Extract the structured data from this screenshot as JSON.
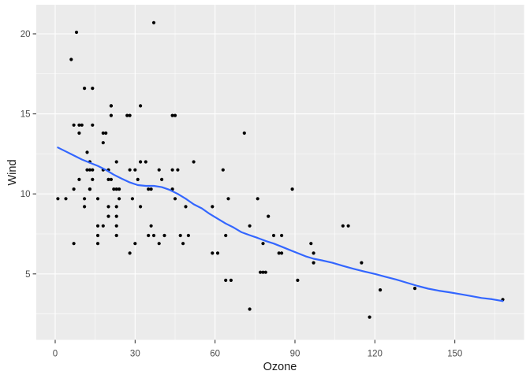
{
  "figure": {
    "background": "#FFFFFF",
    "panel_background": "#EBEBEB",
    "grid_color": "#FFFFFF",
    "point_color": "#000000",
    "tick_label_color": "#4D4D4D",
    "axis_title_color": "#1A1A1A",
    "tick_mark_color": "#333333"
  },
  "chart_data": {
    "type": "scatter",
    "title": "",
    "xlabel": "Ozone",
    "ylabel": "Wind",
    "xlim": [
      -7.1,
      176.0
    ],
    "ylim": [
      0.88,
      21.82
    ],
    "x_ticks": [
      0,
      30,
      60,
      90,
      120,
      150
    ],
    "y_ticks": [
      5,
      10,
      15,
      20
    ],
    "x_minor_ticks": [
      15,
      45,
      75,
      105,
      135,
      165
    ],
    "y_minor_ticks": [
      2.5,
      7.5,
      12.5,
      17.5
    ],
    "grid": true,
    "legend": "none",
    "points": [
      [
        41,
        7.4
      ],
      [
        36,
        8.0
      ],
      [
        12,
        12.6
      ],
      [
        18,
        11.5
      ],
      [
        28,
        14.9
      ],
      [
        23,
        8.6
      ],
      [
        19,
        13.8
      ],
      [
        8,
        20.1
      ],
      [
        7,
        6.9
      ],
      [
        16,
        9.7
      ],
      [
        11,
        9.2
      ],
      [
        14,
        10.9
      ],
      [
        18,
        13.2
      ],
      [
        14,
        11.5
      ],
      [
        34,
        12.0
      ],
      [
        6,
        18.4
      ],
      [
        30,
        11.5
      ],
      [
        11,
        9.7
      ],
      [
        1,
        9.7
      ],
      [
        11,
        16.6
      ],
      [
        4,
        9.7
      ],
      [
        32,
        12.0
      ],
      [
        23,
        12.0
      ],
      [
        45,
        14.9
      ],
      [
        115,
        5.7
      ],
      [
        37,
        7.4
      ],
      [
        29,
        9.7
      ],
      [
        71,
        13.8
      ],
      [
        39,
        11.5
      ],
      [
        23,
        8.0
      ],
      [
        21,
        14.9
      ],
      [
        37,
        20.7
      ],
      [
        20,
        9.2
      ],
      [
        12,
        11.5
      ],
      [
        13,
        10.3
      ],
      [
        135,
        4.1
      ],
      [
        49,
        9.2
      ],
      [
        32,
        9.2
      ],
      [
        64,
        4.6
      ],
      [
        40,
        10.9
      ],
      [
        77,
        5.1
      ],
      [
        97,
        6.3
      ],
      [
        97,
        5.7
      ],
      [
        85,
        7.4
      ],
      [
        10,
        14.3
      ],
      [
        27,
        14.9
      ],
      [
        7,
        14.3
      ],
      [
        48,
        6.9
      ],
      [
        35,
        10.3
      ],
      [
        61,
        6.3
      ],
      [
        79,
        5.1
      ],
      [
        63,
        11.5
      ],
      [
        16,
        6.9
      ],
      [
        80,
        8.6
      ],
      [
        108,
        8.0
      ],
      [
        20,
        8.6
      ],
      [
        52,
        12.0
      ],
      [
        82,
        7.4
      ],
      [
        50,
        7.4
      ],
      [
        64,
        7.4
      ],
      [
        59,
        9.2
      ],
      [
        39,
        6.9
      ],
      [
        9,
        13.8
      ],
      [
        16,
        7.4
      ],
      [
        78,
        6.9
      ],
      [
        35,
        7.4
      ],
      [
        66,
        4.6
      ],
      [
        122,
        4.0
      ],
      [
        89,
        10.3
      ],
      [
        110,
        8.0
      ],
      [
        44,
        11.5
      ],
      [
        28,
        11.5
      ],
      [
        65,
        9.7
      ],
      [
        22,
        10.3
      ],
      [
        59,
        6.3
      ],
      [
        23,
        7.4
      ],
      [
        31,
        10.9
      ],
      [
        44,
        10.3
      ],
      [
        21,
        15.5
      ],
      [
        9,
        14.3
      ],
      [
        45,
        9.7
      ],
      [
        168,
        3.4
      ],
      [
        73,
        8.0
      ],
      [
        76,
        9.7
      ],
      [
        118,
        2.3
      ],
      [
        84,
        6.3
      ],
      [
        85,
        6.3
      ],
      [
        96,
        6.9
      ],
      [
        78,
        5.1
      ],
      [
        73,
        2.8
      ],
      [
        91,
        4.6
      ],
      [
        47,
        7.4
      ],
      [
        32,
        15.5
      ],
      [
        20,
        10.9
      ],
      [
        23,
        10.3
      ],
      [
        21,
        10.9
      ],
      [
        24,
        9.7
      ],
      [
        44,
        14.9
      ],
      [
        21,
        15.5
      ],
      [
        28,
        6.3
      ],
      [
        9,
        10.9
      ],
      [
        13,
        11.5
      ],
      [
        46,
        11.5
      ],
      [
        18,
        13.8
      ],
      [
        13,
        10.3
      ],
      [
        24,
        10.3
      ],
      [
        16,
        8.0
      ],
      [
        13,
        12.0
      ],
      [
        23,
        9.2
      ],
      [
        36,
        10.3
      ],
      [
        7,
        10.3
      ],
      [
        14,
        16.6
      ],
      [
        30,
        6.9
      ],
      [
        14,
        14.3
      ],
      [
        18,
        8.0
      ],
      [
        20,
        11.5
      ]
    ],
    "smooth_line": {
      "name": "loess-fit",
      "color": "#3366FF",
      "points": [
        [
          1,
          12.9
        ],
        [
          4,
          12.65
        ],
        [
          7,
          12.4
        ],
        [
          10,
          12.15
        ],
        [
          13,
          11.95
        ],
        [
          16,
          11.75
        ],
        [
          19,
          11.5
        ],
        [
          22,
          11.2
        ],
        [
          25,
          10.95
        ],
        [
          28,
          10.72
        ],
        [
          31,
          10.55
        ],
        [
          34,
          10.5
        ],
        [
          37,
          10.5
        ],
        [
          40,
          10.42
        ],
        [
          43,
          10.25
        ],
        [
          46,
          10.0
        ],
        [
          49,
          9.7
        ],
        [
          52,
          9.35
        ],
        [
          55,
          9.1
        ],
        [
          58,
          8.75
        ],
        [
          61,
          8.45
        ],
        [
          64,
          8.15
        ],
        [
          67,
          7.9
        ],
        [
          70,
          7.6
        ],
        [
          73,
          7.42
        ],
        [
          76,
          7.25
        ],
        [
          79,
          7.06
        ],
        [
          82,
          6.9
        ],
        [
          85,
          6.7
        ],
        [
          88,
          6.5
        ],
        [
          91,
          6.3
        ],
        [
          94,
          6.1
        ],
        [
          97,
          5.95
        ],
        [
          100,
          5.85
        ],
        [
          104,
          5.7
        ],
        [
          108,
          5.5
        ],
        [
          112,
          5.32
        ],
        [
          116,
          5.15
        ],
        [
          120,
          5.0
        ],
        [
          124,
          4.82
        ],
        [
          128,
          4.65
        ],
        [
          132,
          4.45
        ],
        [
          136,
          4.25
        ],
        [
          140,
          4.08
        ],
        [
          144,
          3.95
        ],
        [
          148,
          3.85
        ],
        [
          152,
          3.74
        ],
        [
          156,
          3.62
        ],
        [
          160,
          3.5
        ],
        [
          164,
          3.42
        ],
        [
          168,
          3.3
        ]
      ]
    }
  }
}
